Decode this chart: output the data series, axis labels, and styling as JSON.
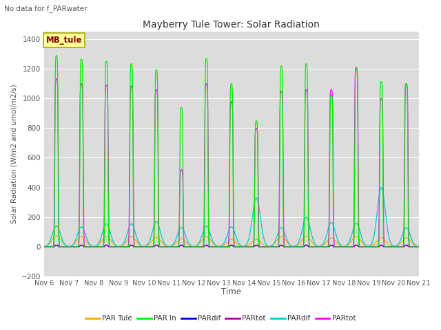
{
  "title": "Mayberry Tule Tower: Solar Radiation",
  "subtitle": "No data for f_PARwater",
  "ylabel": "Solar Radiation (W/m2 and umol/m2/s)",
  "xlabel": "Time",
  "ylim": [
    -200,
    1450
  ],
  "xlim": [
    0,
    15
  ],
  "bg_color": "#dcdcdc",
  "legend_box_label": "MB_tule",
  "legend_box_color": "#ffff99",
  "legend_box_edge": "#aaaa00",
  "legend_box_text": "#880000",
  "x_tick_labels": [
    "Nov 6",
    "Nov 7",
    "Nov 8",
    "Nov 9",
    "Nov 10",
    "Nov 11",
    "Nov 12",
    "Nov 13",
    "Nov 14",
    "Nov 15",
    "Nov 16",
    "Nov 17",
    "Nov 18",
    "Nov 19",
    "Nov 20",
    "Nov 21"
  ],
  "series_colors": {
    "PAR_Tule": "#ffaa00",
    "PAR_In": "#00ee00",
    "PARdif_blue": "#0000dd",
    "PARtot_purple": "#aa00aa",
    "PARdif_cyan": "#00cccc",
    "PARtot_magenta": "#ff00ff"
  },
  "legend_entries": [
    {
      "label": "PAR Tule",
      "color": "#ffaa00"
    },
    {
      "label": "PAR In",
      "color": "#00ee00"
    },
    {
      "label": "PARdif",
      "color": "#0000dd"
    },
    {
      "label": "PARtot",
      "color": "#aa00aa"
    },
    {
      "label": "PARdif",
      "color": "#00cccc"
    },
    {
      "label": "PARtot",
      "color": "#ff00ff"
    }
  ],
  "num_days": 15,
  "day_peaks_green": [
    1290,
    1265,
    1250,
    1235,
    1195,
    940,
    1270,
    1100,
    850,
    1220,
    1235,
    1025,
    1205,
    1115,
    1100
  ],
  "day_peaks_magenta": [
    1135,
    1100,
    1090,
    1085,
    1060,
    520,
    1100,
    980,
    800,
    1050,
    1060,
    1060,
    1210,
    1000,
    1100
  ],
  "day_peaks_orange": [
    75,
    70,
    70,
    70,
    65,
    55,
    70,
    50,
    50,
    70,
    70,
    60,
    70,
    60,
    60
  ],
  "day_peaks_cyan": [
    140,
    135,
    155,
    155,
    170,
    130,
    140,
    135,
    330,
    130,
    200,
    165,
    160,
    400,
    130
  ],
  "day_widths_green": [
    0.07,
    0.07,
    0.07,
    0.07,
    0.07,
    0.07,
    0.07,
    0.07,
    0.07,
    0.07,
    0.07,
    0.07,
    0.07,
    0.07,
    0.07
  ],
  "day_widths_magenta": [
    0.08,
    0.08,
    0.08,
    0.08,
    0.08,
    0.08,
    0.08,
    0.08,
    0.08,
    0.08,
    0.08,
    0.08,
    0.08,
    0.08,
    0.08
  ],
  "day_duration": 0.35,
  "orange_duration": 0.45,
  "cyan_duration": 0.3
}
